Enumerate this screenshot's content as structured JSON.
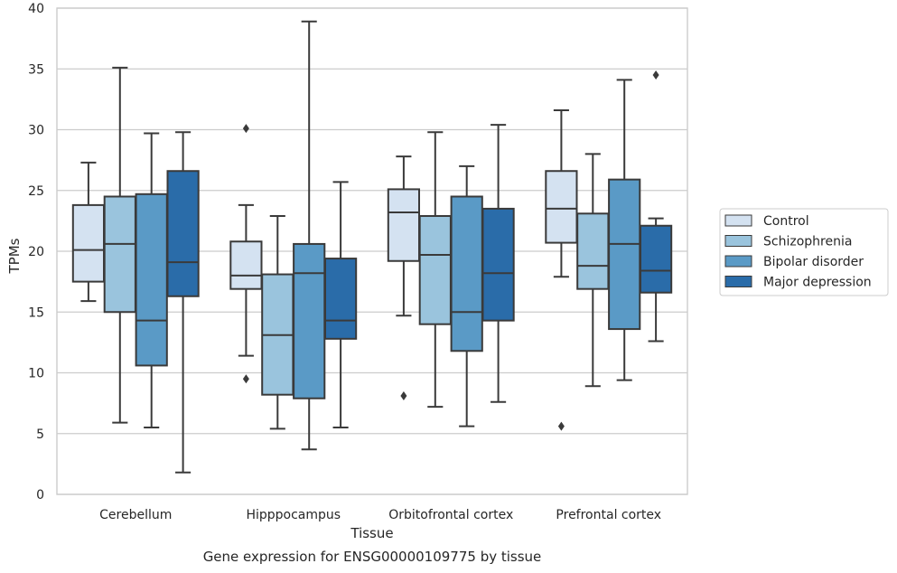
{
  "caption": "Gene expression for ENSG00000109775 by tissue",
  "chart_data": {
    "type": "box",
    "xlabel": "Tissue",
    "ylabel": "TPMs",
    "ylim": [
      0,
      40
    ],
    "yticks": [
      0,
      5,
      10,
      15,
      20,
      25,
      30,
      35,
      40
    ],
    "grid": true,
    "legend_position": "right",
    "categories": [
      "Cerebellum",
      "Hipppocampus",
      "Orbitofrontal cortex",
      "Prefrontal cortex"
    ],
    "series": [
      {
        "name": "Control",
        "color": "#d4e2f1",
        "boxes": [
          {
            "whislo": 15.9,
            "q1": 17.5,
            "med": 20.1,
            "q3": 23.8,
            "whishi": 27.3,
            "fliers": []
          },
          {
            "whislo": 11.4,
            "q1": 16.9,
            "med": 18.0,
            "q3": 20.8,
            "whishi": 23.8,
            "fliers": [
              30.1,
              9.5
            ]
          },
          {
            "whislo": 14.7,
            "q1": 19.2,
            "med": 23.2,
            "q3": 25.1,
            "whishi": 27.8,
            "fliers": [
              8.1
            ]
          },
          {
            "whislo": 17.9,
            "q1": 20.7,
            "med": 23.5,
            "q3": 26.6,
            "whishi": 31.6,
            "fliers": [
              5.6
            ]
          }
        ]
      },
      {
        "name": "Schizophrenia",
        "color": "#9ac4dd",
        "boxes": [
          {
            "whislo": 5.9,
            "q1": 15.0,
            "med": 20.6,
            "q3": 24.5,
            "whishi": 35.1,
            "fliers": []
          },
          {
            "whislo": 5.4,
            "q1": 8.2,
            "med": 13.1,
            "q3": 18.1,
            "whishi": 22.9,
            "fliers": []
          },
          {
            "whislo": 7.2,
            "q1": 14.0,
            "med": 19.7,
            "q3": 22.9,
            "whishi": 29.8,
            "fliers": []
          },
          {
            "whislo": 8.9,
            "q1": 16.9,
            "med": 18.8,
            "q3": 23.1,
            "whishi": 28.0,
            "fliers": []
          }
        ]
      },
      {
        "name": "Bipolar disorder",
        "color": "#5a9ac6",
        "boxes": [
          {
            "whislo": 5.5,
            "q1": 10.6,
            "med": 14.3,
            "q3": 24.7,
            "whishi": 29.7,
            "fliers": []
          },
          {
            "whislo": 3.7,
            "q1": 7.9,
            "med": 18.2,
            "q3": 20.6,
            "whishi": 38.9,
            "fliers": []
          },
          {
            "whislo": 5.6,
            "q1": 11.8,
            "med": 15.0,
            "q3": 24.5,
            "whishi": 27.0,
            "fliers": []
          },
          {
            "whislo": 9.4,
            "q1": 13.6,
            "med": 20.6,
            "q3": 25.9,
            "whishi": 34.1,
            "fliers": []
          }
        ]
      },
      {
        "name": "Major depression",
        "color": "#2a6ca9",
        "boxes": [
          {
            "whislo": 1.8,
            "q1": 16.3,
            "med": 19.1,
            "q3": 26.6,
            "whishi": 29.8,
            "fliers": []
          },
          {
            "whislo": 5.5,
            "q1": 12.8,
            "med": 14.3,
            "q3": 19.4,
            "whishi": 25.7,
            "fliers": []
          },
          {
            "whislo": 7.6,
            "q1": 14.3,
            "med": 18.2,
            "q3": 23.5,
            "whishi": 30.4,
            "fliers": []
          },
          {
            "whislo": 12.6,
            "q1": 16.6,
            "med": 18.4,
            "q3": 22.1,
            "whishi": 22.7,
            "fliers": [
              34.5
            ]
          }
        ]
      }
    ]
  }
}
